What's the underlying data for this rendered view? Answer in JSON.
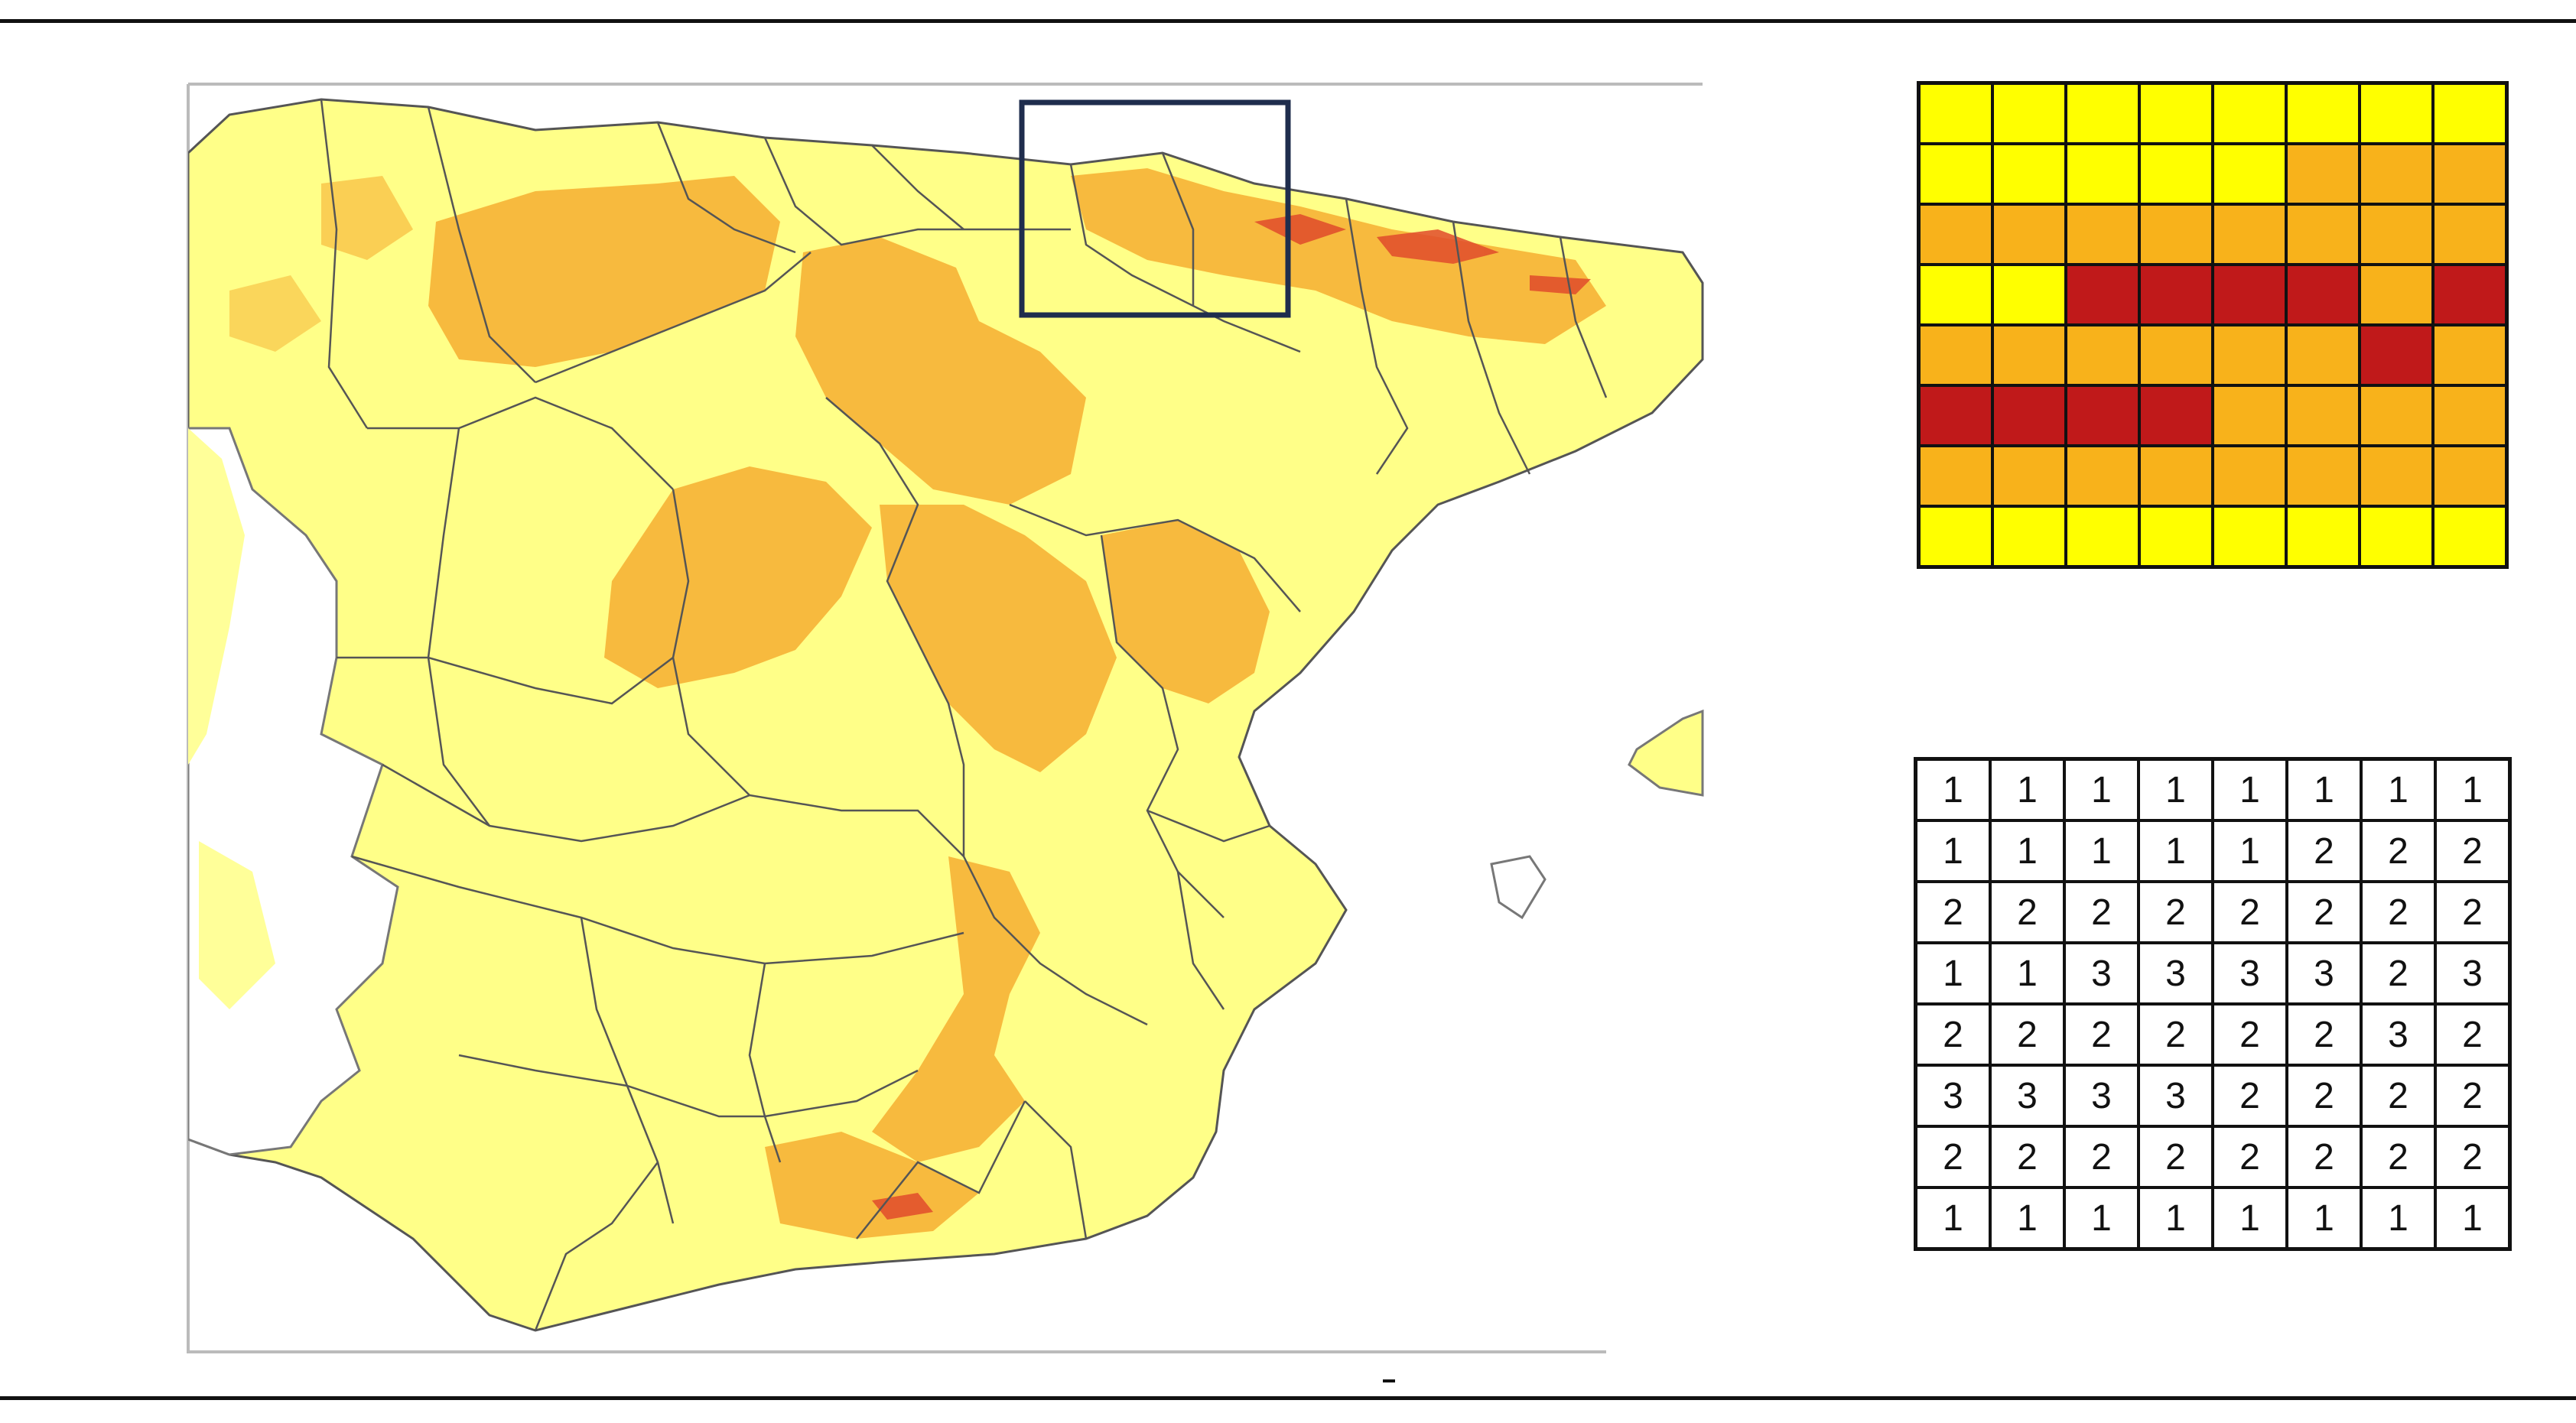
{
  "figure": {
    "map": {
      "region": "Iberian Peninsula (Spain provinces)",
      "highlight_box": "selected zone over the central Pyrenees"
    },
    "legend_colors": {
      "1": "#FFFF00",
      "2": "#F8B21B",
      "3": "#C0191A"
    },
    "terrain_colors": {
      "low": "#FFFF88",
      "mid": "#F7B73A",
      "high": "#E04B2B",
      "sea": "#FFFFFF"
    },
    "class_grid": [
      [
        1,
        1,
        1,
        1,
        1,
        1,
        1,
        1
      ],
      [
        1,
        1,
        1,
        1,
        1,
        2,
        2,
        2
      ],
      [
        2,
        2,
        2,
        2,
        2,
        2,
        2,
        2
      ],
      [
        1,
        1,
        3,
        3,
        3,
        3,
        2,
        3
      ],
      [
        2,
        2,
        2,
        2,
        2,
        2,
        3,
        2
      ],
      [
        3,
        3,
        3,
        3,
        2,
        2,
        2,
        2
      ],
      [
        2,
        2,
        2,
        2,
        2,
        2,
        2,
        2
      ],
      [
        1,
        1,
        1,
        1,
        1,
        1,
        1,
        1
      ]
    ]
  }
}
